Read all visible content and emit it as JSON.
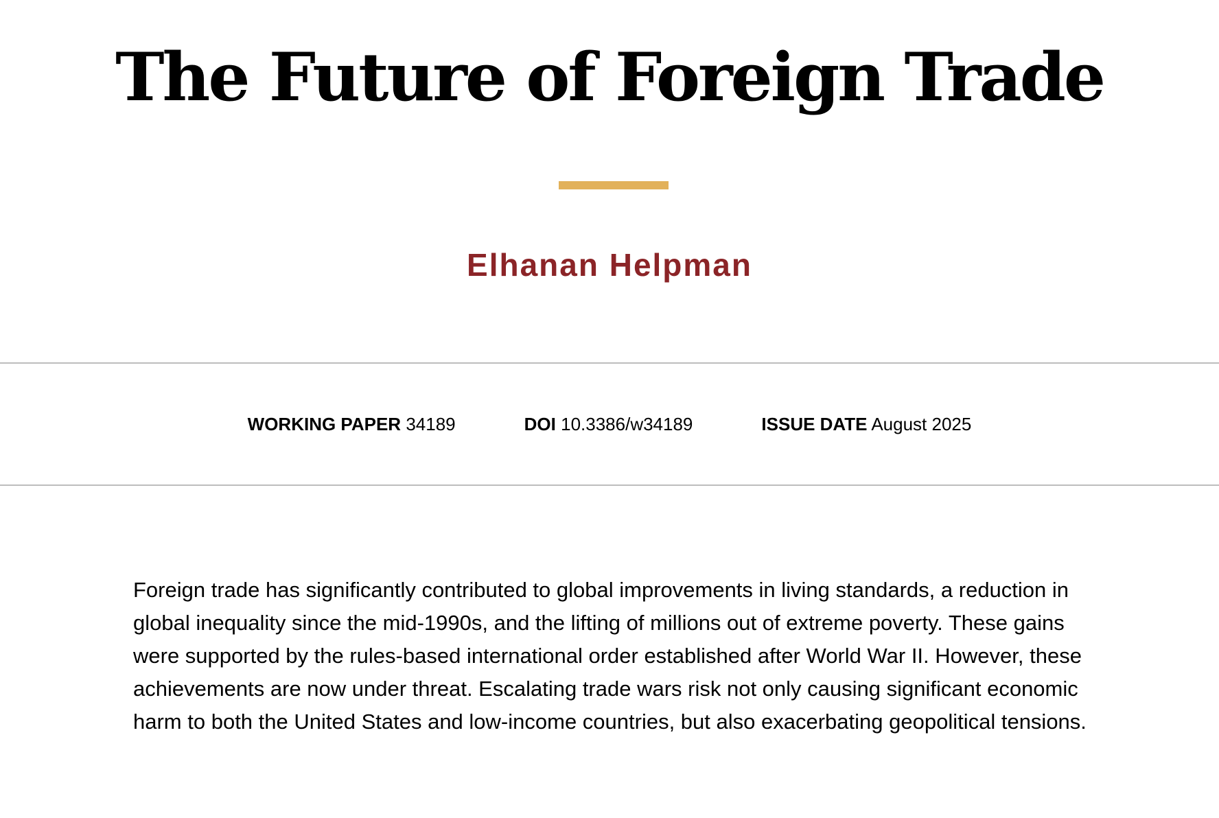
{
  "paper": {
    "title": "The Future of Foreign Trade",
    "author": "Elhanan Helpman",
    "meta": {
      "working_paper_label": "WORKING PAPER",
      "working_paper_value": "34189",
      "doi_label": "DOI",
      "doi_value": "10.3386/w34189",
      "issue_date_label": "ISSUE DATE",
      "issue_date_value": "August 2025"
    },
    "abstract": "Foreign trade has significantly contributed to global improvements in living standards, a reduction in global inequality since the mid-1990s, and the lifting of millions out of extreme poverty. These gains were supported by the rules-based international order established after World War II. However, these achievements are now under threat. Escalating trade wars risk not only causing significant economic harm to both the United States and low-income countries, but also exacerbating geopolitical tensions."
  },
  "colors": {
    "accent_bar": "#e2b15a",
    "author": "#8b2427",
    "divider": "#bdbdbd",
    "text": "#000000"
  }
}
